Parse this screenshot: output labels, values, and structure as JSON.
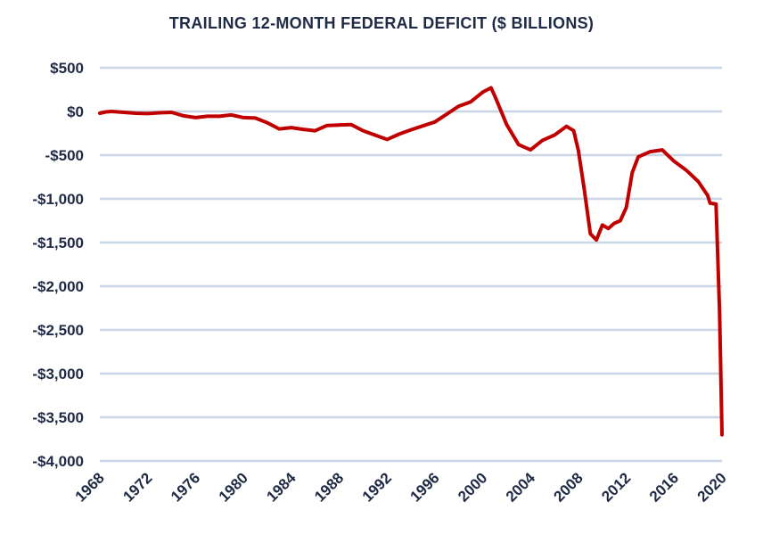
{
  "chart_data": {
    "type": "line",
    "title": "TRAILING 12-MONTH FEDERAL DEFICIT ($ BILLIONS)",
    "xlabel": "",
    "ylabel": "",
    "xlim": [
      1968,
      2020
    ],
    "ylim": [
      -4000,
      500
    ],
    "grid": true,
    "colors": {
      "line": "#c00000",
      "grid": "#c9d6e6",
      "text": "#1f2a44"
    },
    "y_ticks": [
      {
        "value": 500,
        "label": "$500"
      },
      {
        "value": 0,
        "label": "$0"
      },
      {
        "value": -500,
        "label": "-$500"
      },
      {
        "value": -1000,
        "label": "-$1,000"
      },
      {
        "value": -1500,
        "label": "-$1,500"
      },
      {
        "value": -2000,
        "label": "-$2,000"
      },
      {
        "value": -2500,
        "label": "-$2,500"
      },
      {
        "value": -3000,
        "label": "-$3,000"
      },
      {
        "value": -3500,
        "label": "-$3,500"
      },
      {
        "value": -4000,
        "label": "-$4,000"
      }
    ],
    "x_ticks": [
      {
        "value": 1968,
        "label": "1968"
      },
      {
        "value": 1972,
        "label": "1972"
      },
      {
        "value": 1976,
        "label": "1976"
      },
      {
        "value": 1980,
        "label": "1980"
      },
      {
        "value": 1984,
        "label": "1984"
      },
      {
        "value": 1988,
        "label": "1988"
      },
      {
        "value": 1992,
        "label": "1992"
      },
      {
        "value": 1996,
        "label": "1996"
      },
      {
        "value": 2000,
        "label": "2000"
      },
      {
        "value": 2004,
        "label": "2004"
      },
      {
        "value": 2008,
        "label": "2008"
      },
      {
        "value": 2012,
        "label": "2012"
      },
      {
        "value": 2016,
        "label": "2016"
      },
      {
        "value": 2020,
        "label": "2020"
      }
    ],
    "series": [
      {
        "points": [
          [
            1968,
            -20
          ],
          [
            1968.5,
            -5
          ],
          [
            1969,
            0
          ],
          [
            1970,
            -10
          ],
          [
            1971,
            -20
          ],
          [
            1972,
            -25
          ],
          [
            1973,
            -15
          ],
          [
            1974,
            -10
          ],
          [
            1975,
            -50
          ],
          [
            1976,
            -70
          ],
          [
            1977,
            -55
          ],
          [
            1978,
            -55
          ],
          [
            1979,
            -40
          ],
          [
            1980,
            -70
          ],
          [
            1981,
            -75
          ],
          [
            1982,
            -130
          ],
          [
            1983,
            -200
          ],
          [
            1984,
            -185
          ],
          [
            1985,
            -205
          ],
          [
            1986,
            -220
          ],
          [
            1987,
            -160
          ],
          [
            1988,
            -155
          ],
          [
            1989,
            -150
          ],
          [
            1990,
            -220
          ],
          [
            1991,
            -270
          ],
          [
            1992,
            -320
          ],
          [
            1993,
            -260
          ],
          [
            1994,
            -210
          ],
          [
            1995,
            -165
          ],
          [
            1996,
            -120
          ],
          [
            1997,
            -30
          ],
          [
            1998,
            60
          ],
          [
            1999,
            110
          ],
          [
            2000,
            220
          ],
          [
            2000.7,
            270
          ],
          [
            2001,
            180
          ],
          [
            2002,
            -150
          ],
          [
            2003,
            -380
          ],
          [
            2004,
            -440
          ],
          [
            2005,
            -330
          ],
          [
            2006,
            -270
          ],
          [
            2007,
            -170
          ],
          [
            2007.6,
            -220
          ],
          [
            2008,
            -450
          ],
          [
            2008.5,
            -900
          ],
          [
            2009,
            -1400
          ],
          [
            2009.5,
            -1470
          ],
          [
            2010,
            -1300
          ],
          [
            2010.5,
            -1340
          ],
          [
            2011,
            -1280
          ],
          [
            2011.5,
            -1250
          ],
          [
            2012,
            -1100
          ],
          [
            2012.5,
            -700
          ],
          [
            2013,
            -520
          ],
          [
            2014,
            -460
          ],
          [
            2015,
            -440
          ],
          [
            2016,
            -570
          ],
          [
            2017,
            -670
          ],
          [
            2018,
            -800
          ],
          [
            2018.8,
            -960
          ],
          [
            2019,
            -1050
          ],
          [
            2019.5,
            -1060
          ],
          [
            2019.8,
            -2300
          ],
          [
            2020,
            -3700
          ]
        ]
      }
    ]
  }
}
